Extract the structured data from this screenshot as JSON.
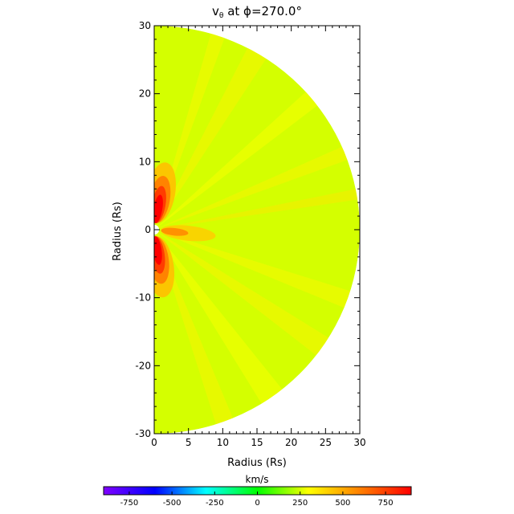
{
  "chart_data": {
    "type": "heatmap",
    "title_main": "v",
    "title_sub": "θ",
    "title_rest": " at ϕ=270.0°",
    "xlabel": "Radius (Rs)",
    "ylabel": "Radius (Rs)",
    "xlim": [
      0,
      30
    ],
    "ylim": [
      -30,
      30
    ],
    "x_ticks": [
      0,
      5,
      10,
      15,
      20,
      25,
      30
    ],
    "y_ticks": [
      -30,
      -20,
      -10,
      0,
      10,
      20,
      30
    ],
    "domain": {
      "shape": "half-disk",
      "r_inner": 0.6,
      "r_outer": 30
    },
    "colorbar": {
      "label": "km/s",
      "range": [
        -900,
        900
      ],
      "ticks": [
        -750,
        -500,
        -250,
        0,
        250,
        500,
        750
      ],
      "colors": [
        "#8000ff",
        "#0000ff",
        "#00ffff",
        "#00ff00",
        "#ffff00",
        "#ff8000",
        "#ff0000"
      ]
    },
    "features": [
      {
        "name": "northern-high-speed-lobe",
        "angle_deg": 80,
        "peak_kms": 900
      },
      {
        "name": "southern-high-speed-lobe",
        "angle_deg": -82,
        "peak_kms": 900
      },
      {
        "name": "equatorial-streamer-jet",
        "angle_deg": -6,
        "peak_kms": 560
      }
    ],
    "background_kms": 250
  }
}
